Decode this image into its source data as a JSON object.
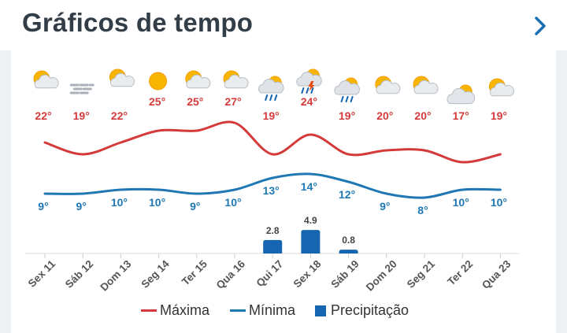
{
  "header": {
    "title": "Gráficos de tempo",
    "next_icon": "chevron-right-icon"
  },
  "colors": {
    "max": "#d43a3a",
    "min": "#1f77b4",
    "precip": "#1565b0",
    "title": "#333d47",
    "accent": "#1b6fb3"
  },
  "legend": {
    "max_label": "Máxima",
    "min_label": "Mínima",
    "precip_label": "Precipitação"
  },
  "chart_data": {
    "type": "line",
    "categories": [
      "Sex 11",
      "Sáb 12",
      "Dom 13",
      "Seg 14",
      "Ter 15",
      "Qua 16",
      "Qui 17",
      "Sex 18",
      "Sáb 19",
      "Dom 20",
      "Seg 21",
      "Ter 22",
      "Qua 23"
    ],
    "icons": [
      "partly-sunny-icon",
      "fog-icon",
      "partly-sunny-icon",
      "sun-icon",
      "partly-sunny-icon",
      "partly-sunny-icon",
      "rain-icon",
      "thunderstorm-icon",
      "rain-icon",
      "partly-sunny-icon",
      "partly-sunny-icon",
      "cloudy-icon",
      "partly-sunny-icon"
    ],
    "series": [
      {
        "name": "Máxima",
        "values": [
          22,
          19,
          22,
          25,
          25,
          27,
          19,
          24,
          19,
          20,
          20,
          17,
          19
        ],
        "labels": [
          "22°",
          "19°",
          "22°",
          "25°",
          "25°",
          "27°",
          "19°",
          "24°",
          "19°",
          "20°",
          "20°",
          "17°",
          "19°"
        ]
      },
      {
        "name": "Mínima",
        "values": [
          9,
          9,
          10,
          10,
          9,
          10,
          13,
          14,
          12,
          9,
          8,
          10,
          10
        ],
        "labels": [
          "9°",
          "9°",
          "10°",
          "10°",
          "9°",
          "10°",
          "13°",
          "14°",
          "12°",
          "9°",
          "8°",
          "10°",
          "10°"
        ]
      },
      {
        "name": "Precipitação",
        "type": "bar",
        "values": [
          0,
          0,
          0,
          0,
          0,
          0,
          2.8,
          4.9,
          0.8,
          0,
          0,
          0,
          0
        ],
        "labels": [
          "",
          "",
          "",
          "",
          "",
          "",
          "2.8",
          "4.9",
          "0.8",
          "",
          "",
          "",
          ""
        ]
      }
    ],
    "grid": false,
    "legend_position": "bottom"
  }
}
